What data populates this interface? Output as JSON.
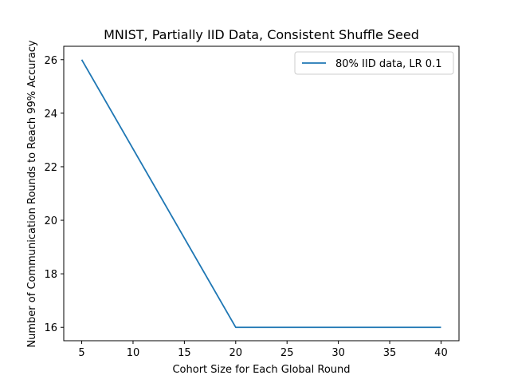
{
  "chart_data": {
    "type": "line",
    "title": "MNIST, Partially IID Data, Consistent Shuffle Seed",
    "xlabel": "Cohort Size for Each Global Round",
    "ylabel": "Number of Communication Rounds to Reach 99% Accuracy",
    "xlim": [
      3.25,
      41.75
    ],
    "ylim": [
      15.5,
      26.5
    ],
    "xticks": [
      "5",
      "10",
      "15",
      "20",
      "25",
      "30",
      "35",
      "40"
    ],
    "yticks": [
      "16",
      "18",
      "20",
      "22",
      "24",
      "26"
    ],
    "grid": false,
    "legend_position": "top-right",
    "series": [
      {
        "name": "80% IID data, LR 0.1",
        "color": "#1f77b4",
        "x": [
          5,
          20,
          40
        ],
        "y": [
          26,
          16,
          16
        ]
      }
    ]
  }
}
